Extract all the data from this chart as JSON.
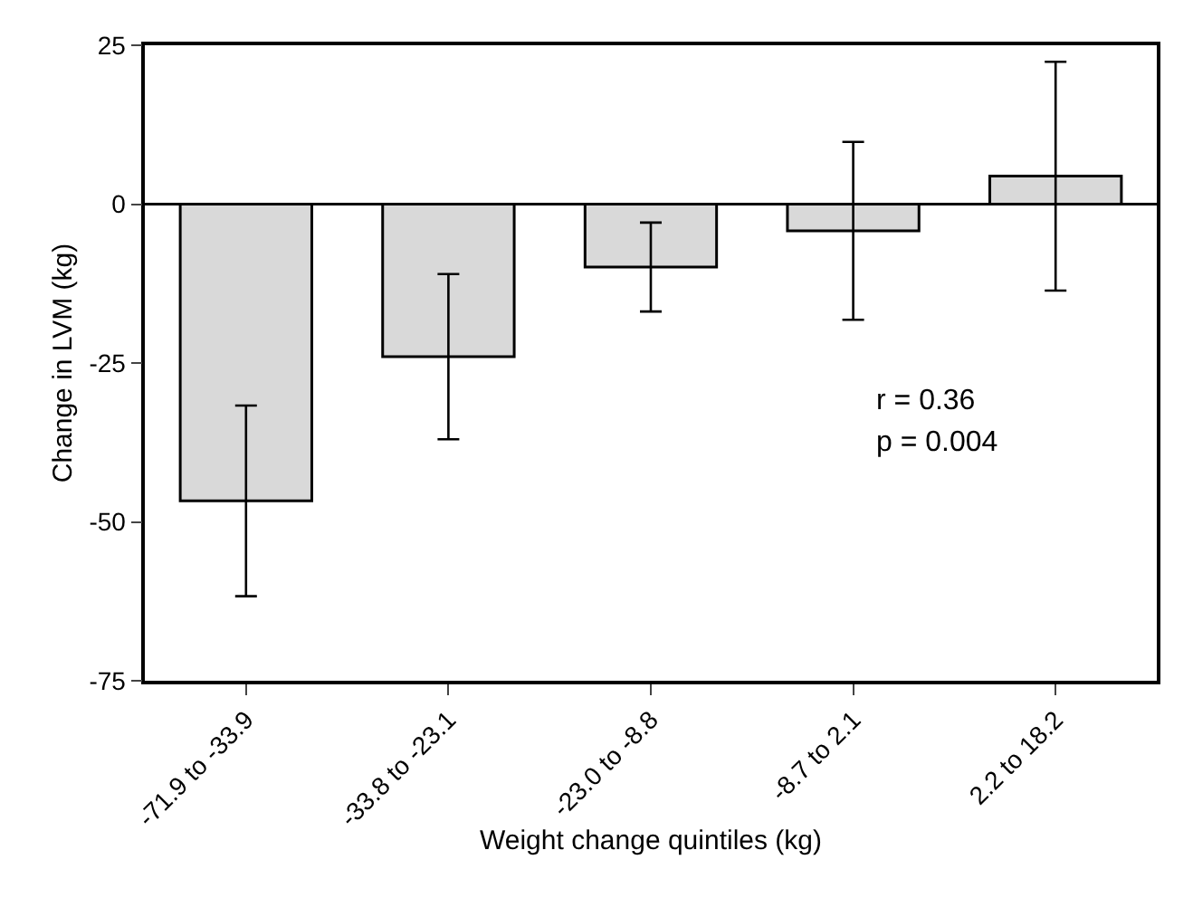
{
  "chart_data": {
    "type": "bar",
    "xlabel": "Weight change quintiles (kg)",
    "ylabel": "Change in LVM (kg)",
    "categories": [
      "-71.9 to -33.9",
      "-33.8 to -23.1",
      "-23.0 to -8.8",
      "-8.7 to 2.1",
      "2.2 to 18.2"
    ],
    "values": [
      -46.7,
      -24.0,
      -9.9,
      -4.2,
      4.4
    ],
    "errors": [
      15,
      13,
      7,
      14,
      18
    ],
    "color": "#d9d9d9",
    "ylim": [
      -75,
      25
    ],
    "yticks": [
      -75,
      -50,
      -25,
      0,
      25
    ],
    "grid": false,
    "ref_lines": [
      {
        "axis": "y",
        "value": 0,
        "color": "#000000"
      }
    ],
    "annotations": [
      "r = 0.36",
      "p = 0.004"
    ]
  }
}
